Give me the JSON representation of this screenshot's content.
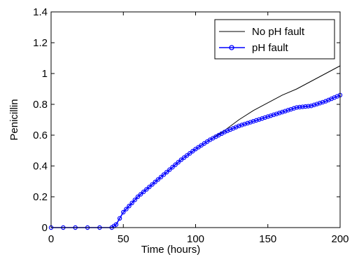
{
  "chart_data": {
    "type": "line",
    "title": "",
    "xlabel": "Time (hours)",
    "ylabel": "Penicillin",
    "xlim": [
      0,
      200
    ],
    "ylim": [
      0,
      1.4
    ],
    "xticks": [
      0,
      50,
      100,
      150,
      200
    ],
    "xtick_labels": [
      "0",
      "50",
      "100",
      "150",
      "200"
    ],
    "yticks": [
      0,
      0.2,
      0.4,
      0.6,
      0.8,
      1,
      1.2,
      1.4
    ],
    "ytick_labels": [
      "0",
      "0.2",
      "0.4",
      "0.6",
      "0.8",
      "1",
      "1.2",
      "1.4"
    ],
    "grid": false,
    "legend_position": "top-right",
    "series": [
      {
        "name": "No pH fault",
        "color": "#000000",
        "marker": "none",
        "x": [
          0,
          42,
          45,
          50,
          60,
          70,
          80,
          90,
          100,
          110,
          120,
          130,
          140,
          150,
          160,
          170,
          180,
          190,
          200
        ],
        "y": [
          0,
          0,
          0.02,
          0.1,
          0.2,
          0.28,
          0.36,
          0.44,
          0.51,
          0.57,
          0.63,
          0.7,
          0.76,
          0.81,
          0.86,
          0.9,
          0.95,
          1.0,
          1.05
        ]
      },
      {
        "name": "pH fault",
        "color": "#0000ff",
        "marker": "circle",
        "x": [
          0,
          42,
          45,
          50,
          60,
          70,
          80,
          90,
          100,
          110,
          120,
          130,
          140,
          150,
          160,
          170,
          180,
          190,
          200
        ],
        "y": [
          0,
          0,
          0.02,
          0.1,
          0.2,
          0.28,
          0.36,
          0.44,
          0.51,
          0.57,
          0.62,
          0.66,
          0.69,
          0.72,
          0.75,
          0.78,
          0.79,
          0.82,
          0.86
        ]
      }
    ]
  },
  "colors": {
    "background": "#ffffff",
    "axis": "#000000",
    "no_fault_line": "#000000",
    "fault_line": "#0000ff"
  }
}
